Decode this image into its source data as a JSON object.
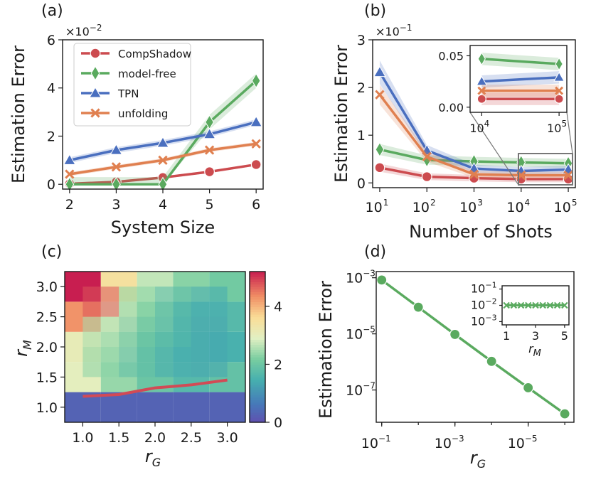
{
  "colors": {
    "CompShadow": "#cc4b4f",
    "model-free": "#5aaa5f",
    "TPN": "#4a6fbf",
    "unfolding": "#e08050"
  },
  "chart_data": [
    {
      "panel": "(a)",
      "type": "line",
      "xlabel": "System Size",
      "ylabel": "Estimation Error",
      "scale_label": "×10",
      "scale_exp": "−2",
      "x": [
        2,
        3,
        4,
        5,
        6
      ],
      "xticks": [
        "2",
        "3",
        "4",
        "5",
        "6"
      ],
      "yticks": [
        "0",
        "2",
        "4",
        "6"
      ],
      "ylim": [
        0,
        6
      ],
      "legend": [
        "CompShadow",
        "model-free",
        "TPN",
        "unfolding"
      ],
      "series": [
        {
          "name": "CompShadow",
          "x": [
            2,
            3,
            4,
            5,
            6
          ],
          "values": [
            0.02,
            0.1,
            0.28,
            0.52,
            0.82
          ],
          "band": 0.05
        },
        {
          "name": "model-free",
          "x": [
            2,
            3,
            4,
            5,
            6
          ],
          "values": [
            0.0,
            0.0,
            0.0,
            2.58,
            4.3
          ],
          "band": 0.3
        },
        {
          "name": "TPN",
          "x": [
            2,
            3,
            4,
            5,
            6
          ],
          "values": [
            1.0,
            1.42,
            1.72,
            2.08,
            2.58
          ],
          "band": 0.12
        },
        {
          "name": "unfolding",
          "x": [
            2,
            3,
            4,
            5,
            6
          ],
          "values": [
            0.42,
            0.72,
            1.0,
            1.42,
            1.68
          ],
          "band": 0.08
        }
      ]
    },
    {
      "panel": "(b)",
      "type": "line",
      "xlabel": "Number of Shots",
      "ylabel": "Estimation Error",
      "scale_label": "×10",
      "scale_exp": "−1",
      "x": [
        10,
        100,
        1000,
        10000,
        100000
      ],
      "xticks": [
        "1",
        "2",
        "3",
        "4",
        "5"
      ],
      "yticks": [
        "0",
        "1",
        "2",
        "3"
      ],
      "ylim": [
        0,
        3
      ],
      "series": [
        {
          "name": "CompShadow",
          "values": [
            0.32,
            0.13,
            0.1,
            0.08,
            0.08
          ]
        },
        {
          "name": "model-free",
          "values": [
            0.7,
            0.48,
            0.45,
            0.43,
            0.41
          ]
        },
        {
          "name": "TPN",
          "values": [
            2.32,
            0.68,
            0.3,
            0.25,
            0.28
          ]
        },
        {
          "name": "unfolding",
          "values": [
            1.85,
            0.55,
            0.18,
            0.16,
            0.16
          ]
        }
      ],
      "inset": {
        "x": [
          10000,
          100000
        ],
        "xticks": [
          "4",
          "5"
        ],
        "yticks": [
          "0.00",
          "0.05"
        ],
        "ylim": [
          -0.005,
          0.06
        ],
        "series": [
          {
            "name": "CompShadow",
            "values": [
              0.008,
              0.008
            ]
          },
          {
            "name": "model-free",
            "values": [
              0.047,
              0.042
            ]
          },
          {
            "name": "TPN",
            "values": [
              0.025,
              0.029
            ]
          },
          {
            "name": "unfolding",
            "values": [
              0.016,
              0.016
            ]
          }
        ]
      }
    },
    {
      "panel": "(c)",
      "type": "heatmap",
      "xlabel": "r",
      "xlabel_sub": "G",
      "ylabel": "r",
      "ylabel_sub": "M",
      "xticks": [
        "1.0",
        "1.5",
        "2.0",
        "2.5",
        "3.0"
      ],
      "yticks": [
        "1.0",
        "1.5",
        "2.0",
        "2.5",
        "3.0"
      ],
      "colorbar_ticks": [
        "0",
        "2",
        "4"
      ],
      "colorbar_range": [
        0,
        5.2
      ],
      "grid_x": [
        1.0,
        1.5,
        2.0,
        2.5,
        3.0
      ],
      "grid_y": [
        1.0,
        1.5,
        2.0,
        2.5,
        3.0
      ],
      "values": [
        [
          0.3,
          0.3,
          0.3,
          0.3,
          0.3
        ],
        [
          3.0,
          2.4,
          2.0,
          1.7,
          1.9
        ],
        [
          3.1,
          2.6,
          2.0,
          1.6,
          1.5
        ],
        [
          4.3,
          3.0,
          2.3,
          1.7,
          1.7
        ],
        [
          5.2,
          3.5,
          2.7,
          2.3,
          2.1
        ]
      ],
      "overlay_values": [
        [
          0.3,
          0.3,
          0.3,
          0.3,
          0.3
        ],
        [
          2.3,
          1.8,
          1.4,
          1.3,
          1.4
        ],
        [
          2.5,
          2.0,
          1.6,
          1.3,
          1.1
        ],
        [
          4.8,
          2.3,
          1.7,
          1.4,
          1.4
        ],
        [
          5.2,
          2.8,
          2.1,
          1.9,
          1.9
        ]
      ],
      "boundary_x": [
        1.0,
        1.5,
        2.0,
        2.5,
        3.0
      ],
      "boundary_y": [
        1.18,
        1.21,
        1.32,
        1.37,
        1.45
      ]
    },
    {
      "panel": "(d)",
      "type": "line",
      "xlabel": "r",
      "xlabel_sub": "G",
      "ylabel": "Estimation Error",
      "x_log": [
        -1,
        -2,
        -3,
        -4,
        -5,
        -6
      ],
      "y_log": [
        -3.08,
        -4.05,
        -5.02,
        -5.98,
        -6.92,
        -7.85
      ],
      "xticks": [
        "−1",
        "−3",
        "−5"
      ],
      "yticks": [
        "−3",
        "−5",
        "−7"
      ],
      "inset": {
        "xlabel": "r",
        "xlabel_sub": "M",
        "x": [
          1,
          1.5,
          2,
          2.5,
          3,
          3.5,
          4,
          4.5,
          5
        ],
        "y_log": [
          -2,
          -2,
          -2,
          -2,
          -2,
          -2,
          -2,
          -2,
          -2
        ],
        "xticks": [
          "1",
          "3",
          "5"
        ],
        "yticks": [
          "−1",
          "−2",
          "−3"
        ]
      }
    }
  ]
}
